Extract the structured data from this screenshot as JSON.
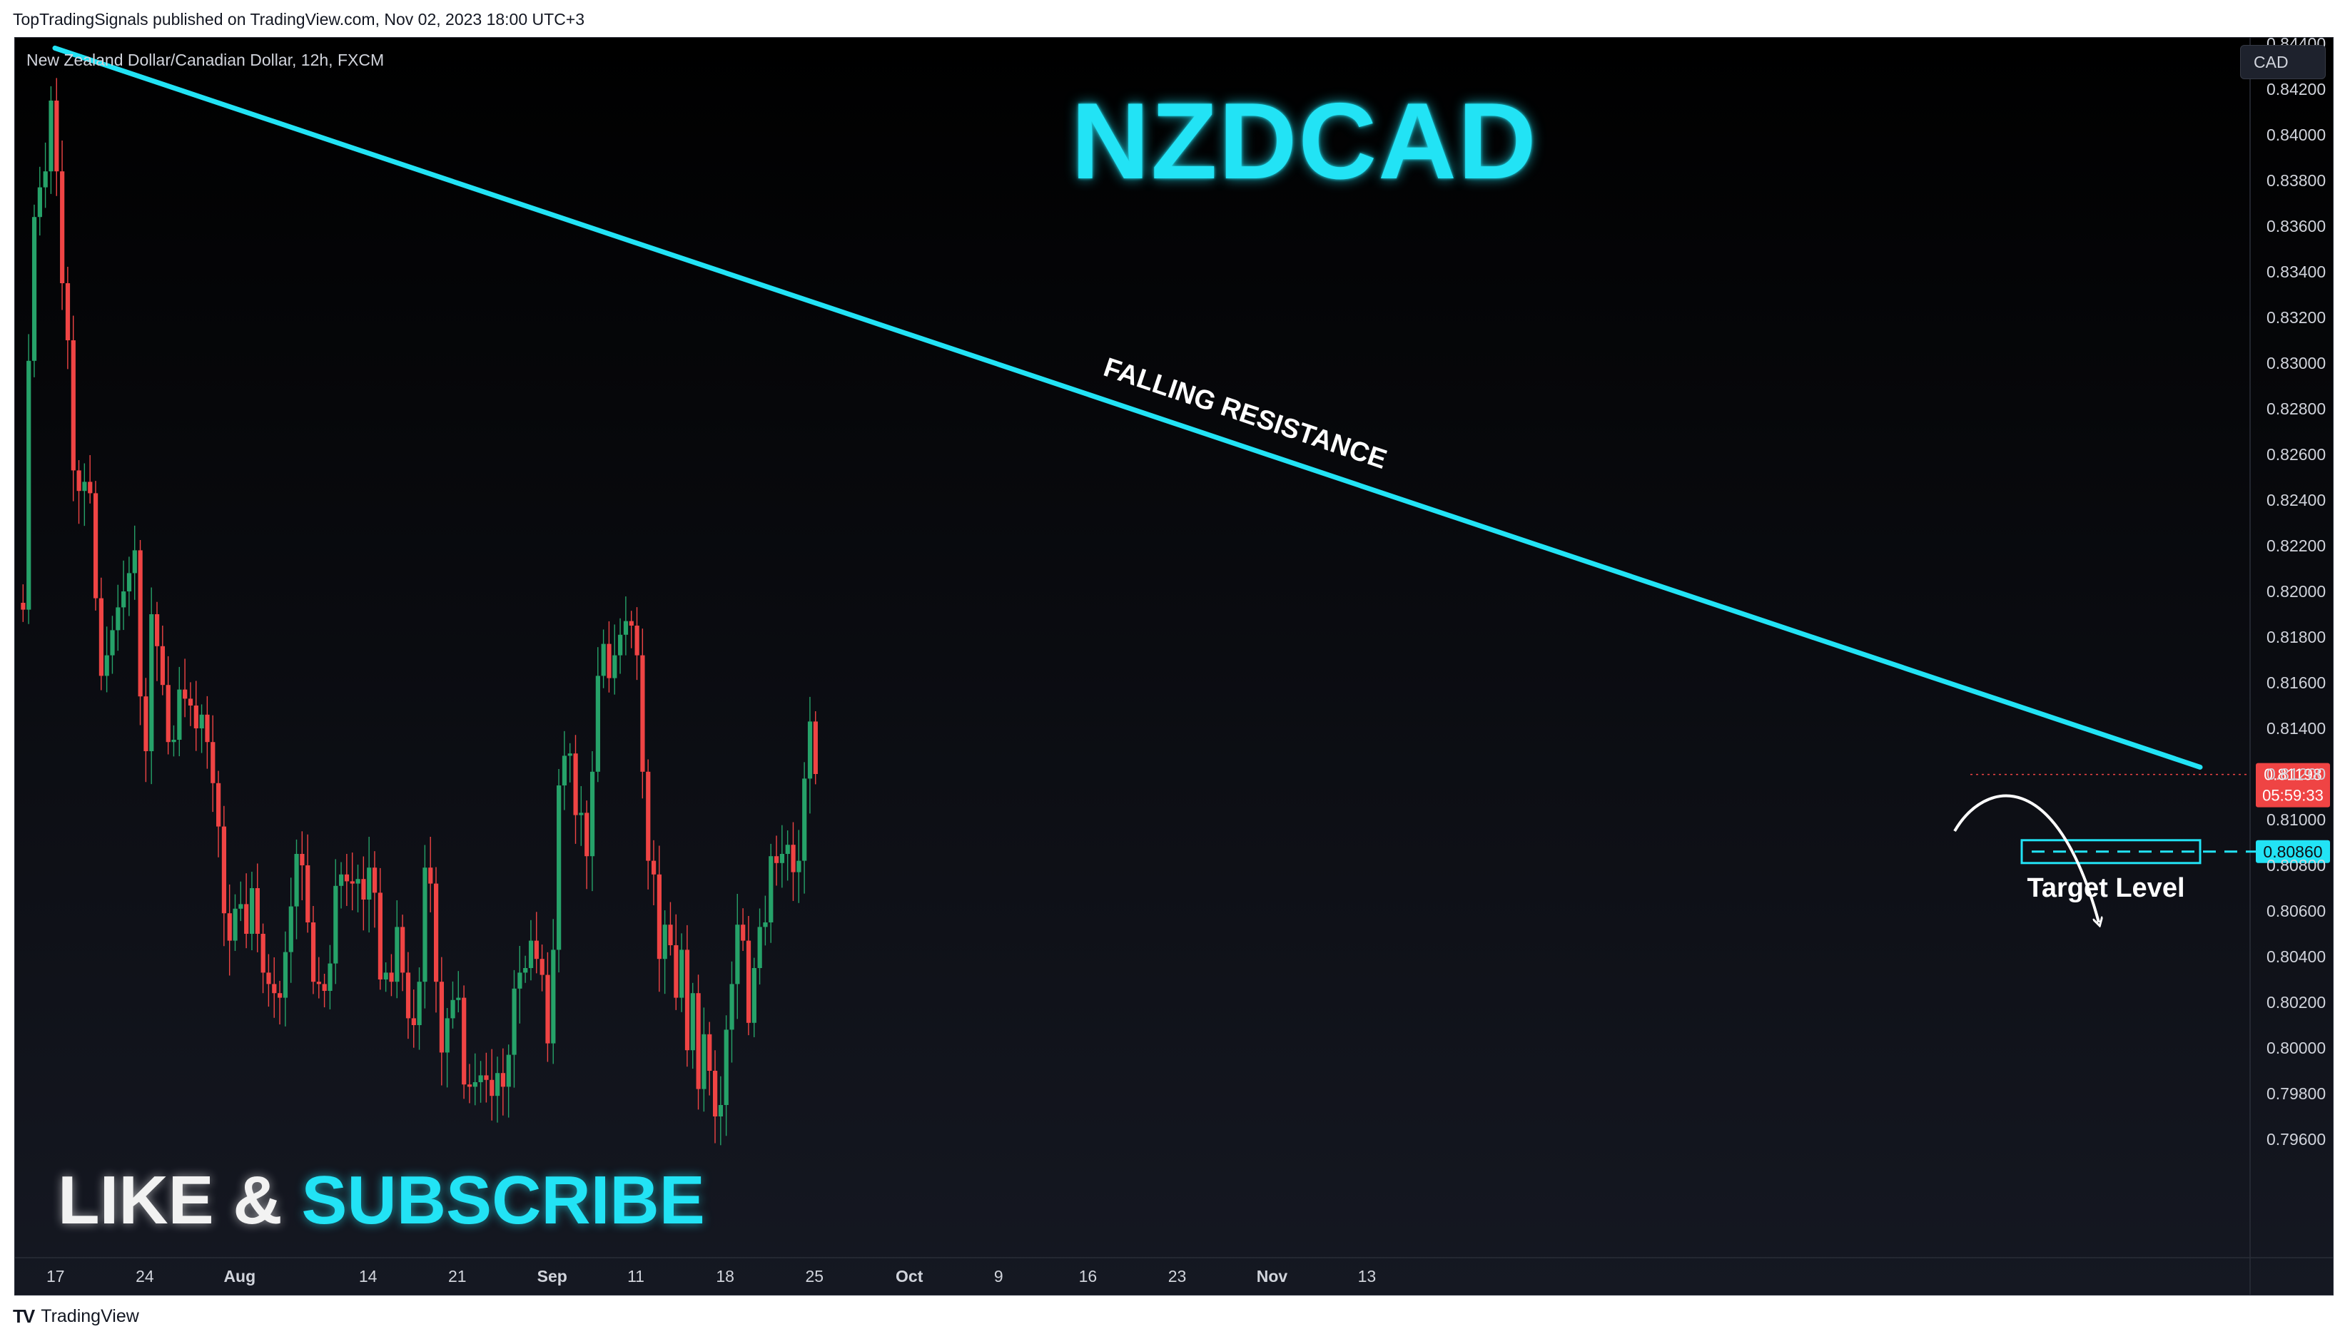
{
  "published": "TopTradingSignals published on TradingView.com, Nov 02, 2023 18:00 UTC+3",
  "symbol_line": "New Zealand Dollar/Canadian Dollar, 12h, FXCM",
  "currency_button": "CAD",
  "title": "NZDCAD",
  "cta": {
    "part1": "LIKE & ",
    "part2": "SUBSCRIBE"
  },
  "annotations": {
    "trendline_label": "FALLING RESISTANCE",
    "target_label": "Target Level",
    "target_price": "0.80860",
    "last_price": "0.81198",
    "countdown": "05:59:33"
  },
  "footer": {
    "logo": "TV",
    "brand": "TradingView"
  },
  "colors": {
    "background": "#0e0f14",
    "bull": "#26a269",
    "bear": "#ef4444",
    "accent": "#22e3f5",
    "axis_text": "#d1d4dc"
  },
  "chart_data": {
    "type": "candlestick",
    "timeframe": "12h",
    "x_ticks": [
      "17",
      "24",
      "Aug",
      "14",
      "21",
      "Sep",
      "11",
      "18",
      "25",
      "Oct",
      "9",
      "16",
      "23",
      "Nov",
      "13"
    ],
    "y_ticks": [
      "0.84400",
      "0.84200",
      "0.84000",
      "0.83800",
      "0.83600",
      "0.83400",
      "0.83200",
      "0.83000",
      "0.82800",
      "0.82600",
      "0.82400",
      "0.82200",
      "0.82000",
      "0.81800",
      "0.81600",
      "0.81400",
      "0.81200",
      "0.81000",
      "0.80800",
      "0.80600",
      "0.80400",
      "0.80200",
      "0.80000",
      "0.79800",
      "0.79600"
    ],
    "ylim": [
      0.7955,
      0.8443
    ],
    "close_path": [
      0.8195,
      0.8192,
      0.8301,
      0.8364,
      0.8377,
      0.8384,
      0.8415,
      0.8384,
      0.8335,
      0.831,
      0.8253,
      0.8244,
      0.8248,
      0.8243,
      0.8197,
      0.8163,
      0.8172,
      0.8183,
      0.8193,
      0.82,
      0.8208,
      0.8218,
      0.8154,
      0.813,
      0.819,
      0.8176,
      0.8159,
      0.8134,
      0.8135,
      0.8157,
      0.8153,
      0.815,
      0.814,
      0.8146,
      0.8134,
      0.8116,
      0.8097,
      0.8059,
      0.8047,
      0.8061,
      0.8063,
      0.805,
      0.807,
      0.805,
      0.8033,
      0.8028,
      0.8024,
      0.8022,
      0.8042,
      0.8062,
      0.8085,
      0.808,
      0.8055,
      0.8029,
      0.8028,
      0.8025,
      0.8037,
      0.8071,
      0.8076,
      0.8073,
      0.8072,
      0.8074,
      0.8065,
      0.8079,
      0.8068,
      0.803,
      0.8033,
      0.8029,
      0.8053,
      0.8033,
      0.8013,
      0.801,
      0.8029,
      0.8079,
      0.8072,
      0.8029,
      0.7998,
      0.8013,
      0.8021,
      0.8022,
      0.7984,
      0.7983,
      0.7985,
      0.7988,
      0.7986,
      0.7979,
      0.7989,
      0.7983,
      0.7997,
      0.8026,
      0.8033,
      0.8035,
      0.8047,
      0.8039,
      0.8032,
      0.8002,
      0.8043,
      0.8115,
      0.8128,
      0.8129,
      0.8102,
      0.8103,
      0.8084,
      0.8121,
      0.8163,
      0.8177,
      0.8162,
      0.8172,
      0.8181,
      0.8187,
      0.8185,
      0.8172,
      0.8121,
      0.8082,
      0.8076,
      0.8039,
      0.8054,
      0.8045,
      0.8022,
      0.8043,
      0.7999,
      0.8024,
      0.7982,
      0.8006,
      0.799,
      0.797,
      0.7975,
      0.8008,
      0.8028,
      0.8054,
      0.8047,
      0.8011,
      0.8035,
      0.8053,
      0.8055,
      0.8084,
      0.8081,
      0.8085,
      0.8089,
      0.8077,
      0.8082,
      0.8118,
      0.8143,
      0.812
    ],
    "trendline": {
      "label": "FALLING RESISTANCE",
      "start": {
        "x": "Jul 14",
        "y": 0.8438
      },
      "end": {
        "x": "Nov 14",
        "y": 0.8123
      }
    },
    "target_level": 0.8086,
    "last_price": 0.81198
  }
}
